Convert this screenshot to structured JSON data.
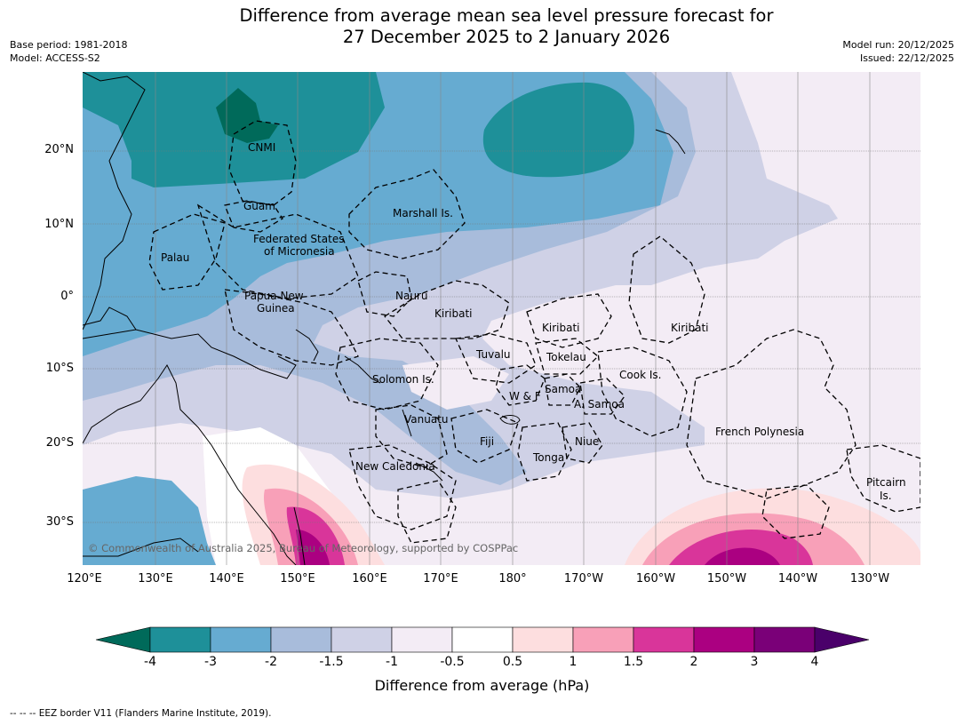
{
  "title": {
    "line1": "Difference from average mean sea level pressure forecast for",
    "line2": "27 December 2025 to 2 January 2026"
  },
  "meta": {
    "base_period": "Base period: 1981-2018",
    "model": "Model: ACCESS-S2",
    "model_run": "Model run: 20/12/2025",
    "issued": "Issued: 22/12/2025"
  },
  "map": {
    "copyright": "© Commonwealth of Australia 2025, Bureau of Meteorology, supported by COSPPac",
    "lat_ticks": [
      "20°N",
      "10°N",
      "0°",
      "10°S",
      "20°S",
      "30°S"
    ],
    "lon_ticks": [
      "120°E",
      "130°E",
      "140°E",
      "150°E",
      "160°E",
      "170°E",
      "180°",
      "170°W",
      "160°W",
      "150°W",
      "140°W",
      "130°W"
    ],
    "labels": [
      "CNMI",
      "Guam",
      "Marshall Is.",
      "Palau",
      "Federated States",
      "of Micronesia",
      "Papua New",
      "Guinea",
      "Nauru",
      "Kiribati",
      "Kiribati",
      "Kiribati",
      "Tuvalu",
      "Tokelau",
      "Solomon Is.",
      "Samoa",
      "W & F",
      "A. Samoa",
      "Cook Is.",
      "Vanuatu",
      "Fiji",
      "Niue",
      "French Polynesia",
      "Tonga",
      "New Caledonia",
      "Pitcairn",
      "Is."
    ]
  },
  "colorbar": {
    "labels": [
      "-4",
      "-3",
      "-2",
      "-1.5",
      "-1",
      "-0.5",
      "0.5",
      "1",
      "1.5",
      "2",
      "3",
      "4"
    ],
    "colors": [
      "#006a5a",
      "#1e9099",
      "#66abd1",
      "#a8bcdb",
      "#cfd1e6",
      "#f3ecf5",
      "#ffffff",
      "#fddedf",
      "#f8a0b8",
      "#d9359a",
      "#ab0081",
      "#7a0078",
      "#4a006a"
    ],
    "title": "Difference from average (hPa)"
  },
  "footnote": "--  --  -- EEZ border V11 (Flanders Marine Institute, 2019)."
}
